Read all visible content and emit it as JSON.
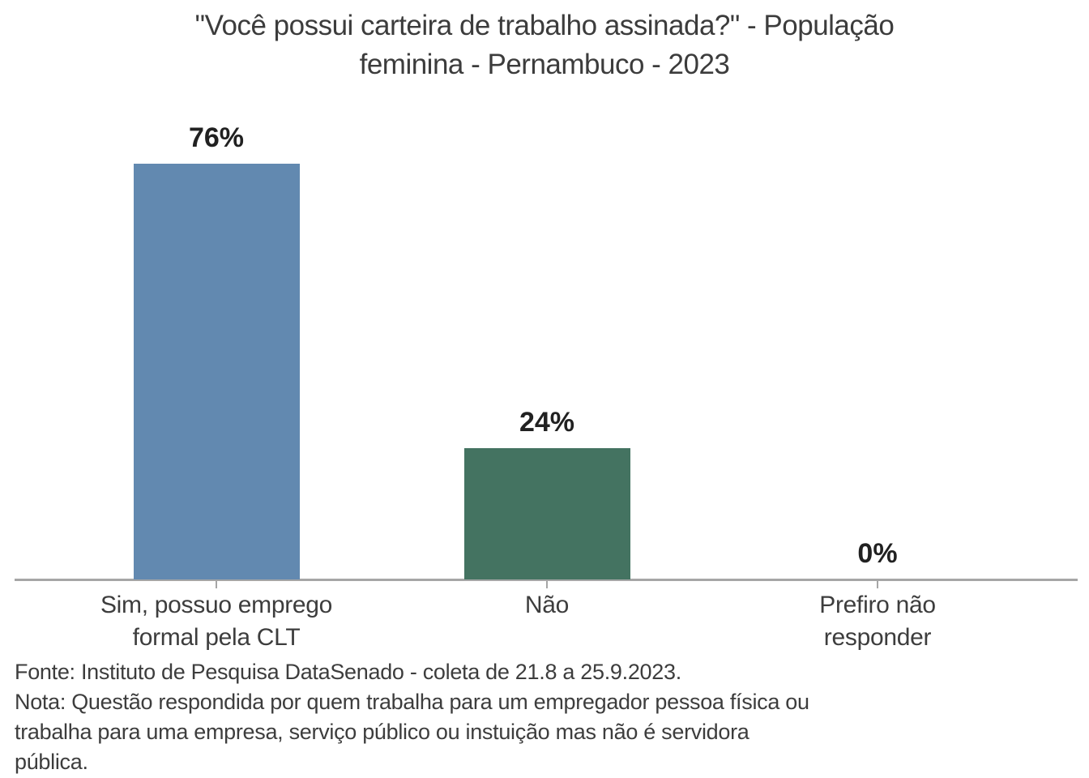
{
  "title": {
    "line1": "\"Você possui carteira de trabalho assinada?\" - População",
    "line2": "feminina - Pernambuco - 2023"
  },
  "chart_data": {
    "type": "bar",
    "title": "\"Você possui carteira de trabalho assinada?\" - População feminina - Pernambuco - 2023",
    "categories": [
      "Sim, possuo emprego\nformal pela CLT",
      "Não",
      "Prefiro não\nresponder"
    ],
    "values": [
      76,
      24,
      0
    ],
    "value_labels": [
      "76%",
      "24%",
      "0%"
    ],
    "bar_colors": [
      "#6289b0",
      "#447361",
      null
    ],
    "xlabel": "",
    "ylabel": "",
    "ylim": [
      0,
      100
    ],
    "grid": false,
    "legend": false,
    "value_label_position": "above-bar",
    "source": "Fonte: Instituto de Pesquisa DataSenado - coleta de 21.8 a 25.9.2023.",
    "note": "Nota: Questão respondida por quem trabalha para um empregador pessoa física ou trabalha para uma empresa, serviço público ou instuição mas não é servidora pública."
  },
  "footer": {
    "lines": [
      "Fonte: Instituto de Pesquisa DataSenado - coleta de 21.8 a 25.9.2023.",
      "Nota: Questão respondida por quem trabalha para um empregador pessoa física ou",
      "trabalha para uma empresa, serviço público ou instuição mas não é servidora",
      "pública."
    ]
  },
  "colors": {
    "bar_blue": "#6289b0",
    "bar_green": "#447361",
    "axis_gray": "#a6a6a6",
    "title_text": "#3c3c3c",
    "value_text": "#212121",
    "label_text": "#3d3d3d",
    "background": "#ffffff"
  }
}
